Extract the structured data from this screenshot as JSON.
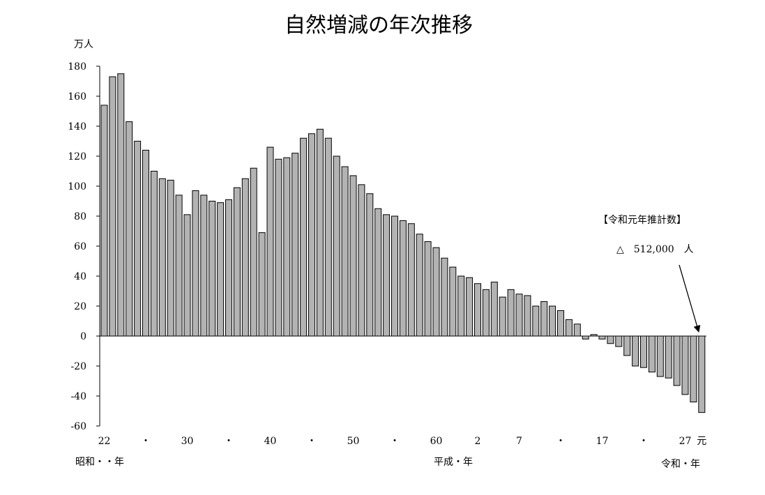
{
  "chart_data": {
    "type": "bar",
    "title": "自然増減の年次推移",
    "y_unit": "万人",
    "ylim": [
      -60,
      180
    ],
    "yticks": [
      180,
      160,
      140,
      120,
      100,
      80,
      60,
      40,
      20,
      0,
      -20,
      -40,
      -60
    ],
    "grid": false,
    "x_tick_labels": [
      "22",
      "・",
      "30",
      "・",
      "40",
      "・",
      "50",
      "・",
      "60",
      "2",
      "7",
      "・",
      "17",
      "・",
      "27",
      "元"
    ],
    "era_labels": [
      "昭和・・年",
      "平成・年",
      "令和・年"
    ],
    "values": [
      154,
      173,
      175,
      143,
      130,
      124,
      110,
      105,
      104,
      94,
      81,
      97,
      94,
      90,
      89,
      91,
      99,
      105,
      112,
      69,
      126,
      118,
      119,
      122,
      132,
      135,
      138,
      132,
      120,
      113,
      107,
      101,
      95,
      85,
      81,
      80,
      77,
      75,
      68,
      63,
      59,
      52,
      46,
      40,
      39,
      35,
      31,
      36,
      26,
      31,
      28,
      27,
      20,
      23,
      20,
      17,
      11,
      8,
      -2,
      1,
      -2,
      -5,
      -7,
      -13,
      -20,
      -21,
      -24,
      -27,
      -28,
      -33,
      -39,
      -44,
      -51
    ],
    "annotation": {
      "heading": "【令和元年推計数】",
      "value": "△　512,000　人"
    },
    "colors": {
      "bar_fill": "#b3b3b3",
      "bar_stroke": "#000000"
    }
  }
}
